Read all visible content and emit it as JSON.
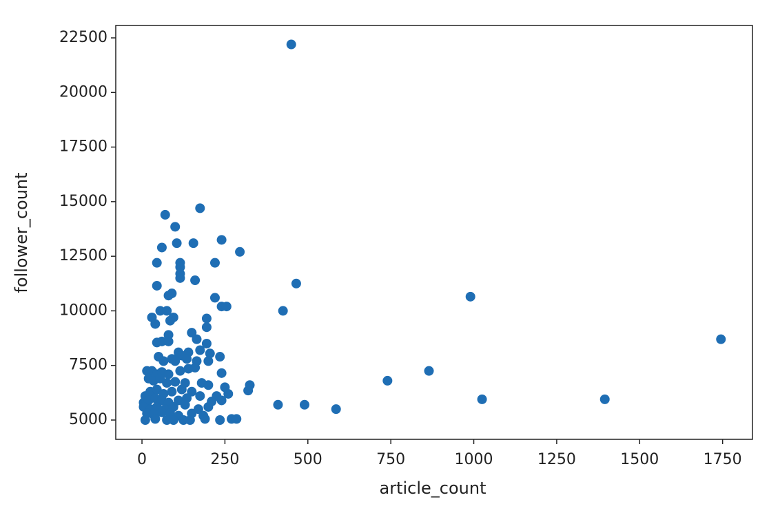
{
  "chart_data": {
    "type": "scatter",
    "xlabel": "article_count",
    "ylabel": "follower_count",
    "color": "#1f6eb4",
    "xlim": [
      -79,
      1840
    ],
    "ylim": [
      4117,
      23068
    ],
    "xticks": [
      0,
      250,
      500,
      750,
      1000,
      1250,
      1500,
      1750
    ],
    "yticks": [
      5000,
      7500,
      10000,
      12500,
      15000,
      17500,
      20000,
      22500
    ],
    "x": [
      450,
      465,
      425,
      990,
      1745,
      865,
      740,
      1025,
      1395,
      410,
      490,
      585,
      295,
      240,
      175,
      70,
      100,
      105,
      155,
      60,
      45,
      115,
      115,
      115,
      115,
      220,
      160,
      45,
      220,
      90,
      80,
      240,
      255,
      55,
      75,
      30,
      95,
      195,
      85,
      40,
      195,
      150,
      80,
      165,
      45,
      60,
      80,
      195,
      175,
      140,
      205,
      110,
      235,
      120,
      90,
      50,
      65,
      100,
      135,
      165,
      200,
      15,
      30,
      45,
      60,
      80,
      115,
      140,
      160,
      240,
      20,
      35,
      55,
      75,
      100,
      130,
      180,
      200,
      325,
      320,
      250,
      10,
      25,
      45,
      65,
      90,
      120,
      150,
      175,
      225,
      260,
      5,
      20,
      40,
      60,
      80,
      110,
      135,
      210,
      240,
      5,
      25,
      45,
      70,
      95,
      130,
      170,
      200,
      15,
      35,
      60,
      85,
      110,
      150,
      185,
      10,
      40,
      75,
      95,
      125,
      145,
      190,
      235,
      270,
      285
    ],
    "y": [
      22200,
      11250,
      10000,
      10650,
      8700,
      7250,
      6800,
      5950,
      5950,
      5700,
      5700,
      5500,
      12700,
      13250,
      14700,
      14400,
      13850,
      13100,
      13100,
      12900,
      12200,
      12200,
      12000,
      11700,
      11500,
      12200,
      11400,
      11150,
      10600,
      10800,
      10700,
      10200,
      10200,
      10000,
      10000,
      9700,
      9700,
      9650,
      9550,
      9400,
      9250,
      9000,
      8900,
      8700,
      8550,
      8600,
      8600,
      8500,
      8200,
      8100,
      8050,
      8100,
      7900,
      7950,
      7800,
      7900,
      7700,
      7700,
      7800,
      7700,
      7700,
      7250,
      7250,
      7100,
      7200,
      7100,
      7250,
      7350,
      7400,
      7150,
      6900,
      6800,
      6900,
      6700,
      6750,
      6700,
      6700,
      6600,
      6600,
      6350,
      6500,
      6100,
      6300,
      6400,
      6200,
      6300,
      6400,
      6300,
      6100,
      6100,
      6200,
      5800,
      5900,
      6000,
      5900,
      5800,
      5900,
      6000,
      5850,
      5900,
      5600,
      5500,
      5600,
      5500,
      5600,
      5700,
      5500,
      5600,
      5300,
      5250,
      5350,
      5300,
      5200,
      5300,
      5200,
      5000,
      5050,
      5000,
      5000,
      5000,
      5000,
      5050,
      5000,
      5050,
      5050
    ]
  }
}
